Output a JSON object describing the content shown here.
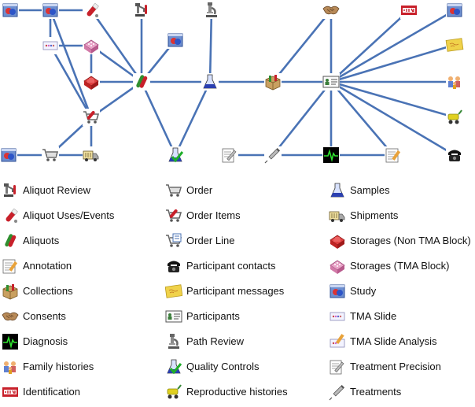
{
  "diagram": {
    "nodes": [
      {
        "id": "study1",
        "icon": "study"
      },
      {
        "id": "aliquot_uses",
        "icon": "aliquot_uses"
      },
      {
        "id": "aliquot_review",
        "icon": "aliquot_review"
      },
      {
        "id": "path_review",
        "icon": "path_review"
      },
      {
        "id": "study2",
        "icon": "study"
      },
      {
        "id": "consents",
        "icon": "consents"
      },
      {
        "id": "identification",
        "icon": "identification"
      },
      {
        "id": "study3",
        "icon": "study"
      },
      {
        "id": "tma_slide",
        "icon": "tma_slide"
      },
      {
        "id": "storage_tma",
        "icon": "storage_tma"
      },
      {
        "id": "study4",
        "icon": "study"
      },
      {
        "id": "participant_messages",
        "icon": "participant_messages"
      },
      {
        "id": "storage_nontma",
        "icon": "storage_nontma"
      },
      {
        "id": "aliquots",
        "icon": "aliquots"
      },
      {
        "id": "samples",
        "icon": "samples"
      },
      {
        "id": "collections",
        "icon": "collections"
      },
      {
        "id": "participants",
        "icon": "participants"
      },
      {
        "id": "family_histories",
        "icon": "family_histories"
      },
      {
        "id": "order_items",
        "icon": "order_items"
      },
      {
        "id": "reproductive_histories",
        "icon": "reproductive_histories"
      },
      {
        "id": "study5",
        "icon": "study"
      },
      {
        "id": "order",
        "icon": "order"
      },
      {
        "id": "shipments",
        "icon": "shipments"
      },
      {
        "id": "quality_controls",
        "icon": "quality_controls"
      },
      {
        "id": "treatment_precision",
        "icon": "treatment_precision"
      },
      {
        "id": "treatments",
        "icon": "treatments"
      },
      {
        "id": "diagnosis",
        "icon": "diagnosis"
      },
      {
        "id": "annotation",
        "icon": "annotation"
      },
      {
        "id": "participant_contacts",
        "icon": "participant_contacts"
      }
    ],
    "edges": [
      [
        "study1",
        "aliquot_uses"
      ],
      [
        "aliquot_uses",
        "aliquots"
      ],
      [
        "aliquot_review",
        "aliquots"
      ],
      [
        "path_review",
        "samples"
      ],
      [
        "study2",
        "aliquots"
      ],
      [
        "consents",
        "participants"
      ],
      [
        "consents",
        "collections"
      ],
      [
        "identification",
        "participants"
      ],
      [
        "study3",
        "tma_slide"
      ],
      [
        "study3",
        "order_items"
      ],
      [
        "tma_slide",
        "storage_tma"
      ],
      [
        "storage_tma",
        "storage_nontma"
      ],
      [
        "storage_tma",
        "aliquots"
      ],
      [
        "tma_slide",
        "order_items"
      ],
      [
        "storage_nontma",
        "aliquots"
      ],
      [
        "aliquots",
        "order_items"
      ],
      [
        "aliquots",
        "samples"
      ],
      [
        "aliquots",
        "quality_controls"
      ],
      [
        "samples",
        "quality_controls"
      ],
      [
        "samples",
        "collections"
      ],
      [
        "collections",
        "participants"
      ],
      [
        "participants",
        "study4"
      ],
      [
        "participants",
        "participant_messages"
      ],
      [
        "participants",
        "family_histories"
      ],
      [
        "participants",
        "reproductive_histories"
      ],
      [
        "participants",
        "participant_contacts"
      ],
      [
        "participants",
        "annotation"
      ],
      [
        "participants",
        "diagnosis"
      ],
      [
        "participants",
        "treatments"
      ],
      [
        "treatment_precision",
        "treatments"
      ],
      [
        "treatments",
        "diagnosis"
      ],
      [
        "diagnosis",
        "annotation"
      ],
      [
        "order_items",
        "order"
      ],
      [
        "order_items",
        "shipments"
      ],
      [
        "order",
        "study5"
      ],
      [
        "order",
        "shipments"
      ]
    ]
  },
  "legend": {
    "columns": [
      [
        {
          "icon": "aliquot_review",
          "label": "Aliquot Review"
        },
        {
          "icon": "aliquot_uses",
          "label": "Aliquot Uses/Events"
        },
        {
          "icon": "aliquots",
          "label": "Aliquots"
        },
        {
          "icon": "annotation",
          "label": "Annotation"
        },
        {
          "icon": "collections",
          "label": "Collections"
        },
        {
          "icon": "consents",
          "label": "Consents"
        },
        {
          "icon": "diagnosis",
          "label": "Diagnosis"
        },
        {
          "icon": "family_histories",
          "label": "Family histories"
        },
        {
          "icon": "identification",
          "label": "Identification"
        }
      ],
      [
        {
          "icon": "order",
          "label": "Order"
        },
        {
          "icon": "order_items",
          "label": "Order Items"
        },
        {
          "icon": "order_line",
          "label": "Order Line"
        },
        {
          "icon": "participant_contacts",
          "label": "Participant contacts"
        },
        {
          "icon": "participant_messages",
          "label": "Participant messages"
        },
        {
          "icon": "participants",
          "label": "Participants"
        },
        {
          "icon": "path_review",
          "label": "Path Review"
        },
        {
          "icon": "quality_controls",
          "label": "Quality Controls"
        },
        {
          "icon": "reproductive_histories",
          "label": "Reproductive histories"
        }
      ],
      [
        {
          "icon": "samples",
          "label": "Samples"
        },
        {
          "icon": "shipments",
          "label": "Shipments"
        },
        {
          "icon": "storage_nontma",
          "label": "Storages (Non TMA Block)"
        },
        {
          "icon": "storage_tma",
          "label": "Storages (TMA Block)"
        },
        {
          "icon": "study",
          "label": "Study"
        },
        {
          "icon": "tma_slide",
          "label": "TMA Slide"
        },
        {
          "icon": "tma_slide_analysis",
          "label": "TMA Slide Analysis"
        },
        {
          "icon": "treatment_precision",
          "label": "Treatment Precision"
        },
        {
          "icon": "treatments",
          "label": "Treatments"
        }
      ]
    ]
  },
  "colors": {
    "edge": "#4a73b5",
    "study": "#3f66b0",
    "red": "#c8202a",
    "green": "#2f8f2f",
    "blue_flask": "#2a3fb0",
    "gray": "#8a8a8a",
    "yellow": "#f0d24a",
    "tan": "#c9a060",
    "black": "#111111"
  }
}
